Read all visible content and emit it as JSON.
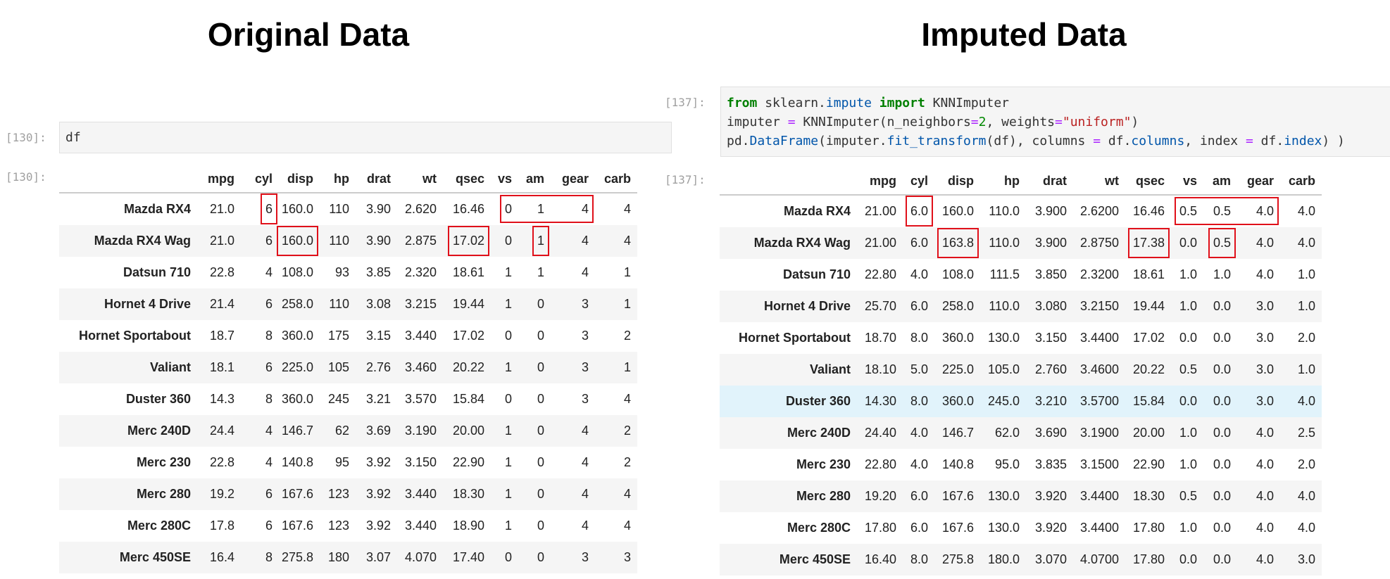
{
  "titles": {
    "left": "Original Data",
    "right": "Imputed Data"
  },
  "left": {
    "in_prompt": "[130]:",
    "out_prompt": "[130]:",
    "code": [
      [
        [
          "df",
          ""
        ]
      ]
    ],
    "columns": [
      "mpg",
      "cyl",
      "disp",
      "hp",
      "drat",
      "wt",
      "qsec",
      "vs",
      "am",
      "gear",
      "carb"
    ],
    "rows": [
      [
        "Mazda RX4",
        "21.0",
        "6",
        "160.0",
        "110",
        "3.90",
        "2.620",
        "16.46",
        "0",
        "1",
        "4",
        "4"
      ],
      [
        "Mazda RX4 Wag",
        "21.0",
        "6",
        "160.0",
        "110",
        "3.90",
        "2.875",
        "17.02",
        "0",
        "1",
        "4",
        "4"
      ],
      [
        "Datsun 710",
        "22.8",
        "4",
        "108.0",
        "93",
        "3.85",
        "2.320",
        "18.61",
        "1",
        "1",
        "4",
        "1"
      ],
      [
        "Hornet 4 Drive",
        "21.4",
        "6",
        "258.0",
        "110",
        "3.08",
        "3.215",
        "19.44",
        "1",
        "0",
        "3",
        "1"
      ],
      [
        "Hornet Sportabout",
        "18.7",
        "8",
        "360.0",
        "175",
        "3.15",
        "3.440",
        "17.02",
        "0",
        "0",
        "3",
        "2"
      ],
      [
        "Valiant",
        "18.1",
        "6",
        "225.0",
        "105",
        "2.76",
        "3.460",
        "20.22",
        "1",
        "0",
        "3",
        "1"
      ],
      [
        "Duster 360",
        "14.3",
        "8",
        "360.0",
        "245",
        "3.21",
        "3.570",
        "15.84",
        "0",
        "0",
        "3",
        "4"
      ],
      [
        "Merc 240D",
        "24.4",
        "4",
        "146.7",
        "62",
        "3.69",
        "3.190",
        "20.00",
        "1",
        "0",
        "4",
        "2"
      ],
      [
        "Merc 230",
        "22.8",
        "4",
        "140.8",
        "95",
        "3.92",
        "3.150",
        "22.90",
        "1",
        "0",
        "4",
        "2"
      ],
      [
        "Merc 280",
        "19.2",
        "6",
        "167.6",
        "123",
        "3.92",
        "3.440",
        "18.30",
        "1",
        "0",
        "4",
        "4"
      ],
      [
        "Merc 280C",
        "17.8",
        "6",
        "167.6",
        "123",
        "3.92",
        "3.440",
        "18.90",
        "1",
        "0",
        "4",
        "4"
      ],
      [
        "Merc 450SE",
        "16.4",
        "8",
        "275.8",
        "180",
        "3.07",
        "4.070",
        "17.40",
        "0",
        "0",
        "3",
        "3"
      ]
    ],
    "highlights": [
      {
        "row": 0,
        "cols": [
          "cyl"
        ]
      },
      {
        "row": 0,
        "cols": [
          "vs",
          "am",
          "gear"
        ]
      },
      {
        "row": 1,
        "cols": [
          "disp"
        ]
      },
      {
        "row": 1,
        "cols": [
          "qsec"
        ]
      },
      {
        "row": 1,
        "cols": [
          "am"
        ]
      }
    ],
    "hovered_row": null
  },
  "right": {
    "in_prompt": "[137]:",
    "out_prompt": "[137]:",
    "code": [
      [
        [
          "from",
          "kw"
        ],
        [
          " sklearn.",
          ""
        ],
        [
          "impute",
          "nm"
        ],
        [
          " ",
          ""
        ],
        [
          "import",
          "kw"
        ],
        [
          " KNNImputer",
          ""
        ]
      ],
      [
        [
          "imputer ",
          ""
        ],
        [
          "=",
          "op"
        ],
        [
          " KNNImputer(n_neighbors",
          ""
        ],
        [
          "=",
          "op"
        ],
        [
          "2",
          "num"
        ],
        [
          ", weights",
          ""
        ],
        [
          "=",
          "op"
        ],
        [
          "\"uniform\"",
          "str"
        ],
        [
          ")",
          ""
        ]
      ],
      [
        [
          "pd.",
          ""
        ],
        [
          "DataFrame",
          "nm"
        ],
        [
          "(imputer.",
          ""
        ],
        [
          "fit_transform",
          "nm"
        ],
        [
          "(df), columns ",
          ""
        ],
        [
          "=",
          "op"
        ],
        [
          " df.",
          ""
        ],
        [
          "columns",
          "nm"
        ],
        [
          ", index ",
          ""
        ],
        [
          "=",
          "op"
        ],
        [
          " df.",
          ""
        ],
        [
          "index",
          "nm"
        ],
        [
          ") )",
          ""
        ]
      ]
    ],
    "columns": [
      "mpg",
      "cyl",
      "disp",
      "hp",
      "drat",
      "wt",
      "qsec",
      "vs",
      "am",
      "gear",
      "carb"
    ],
    "rows": [
      [
        "Mazda RX4",
        "21.00",
        "6.0",
        "160.0",
        "110.0",
        "3.900",
        "2.6200",
        "16.46",
        "0.5",
        "0.5",
        "4.0",
        "4.0"
      ],
      [
        "Mazda RX4 Wag",
        "21.00",
        "6.0",
        "163.8",
        "110.0",
        "3.900",
        "2.8750",
        "17.38",
        "0.0",
        "0.5",
        "4.0",
        "4.0"
      ],
      [
        "Datsun 710",
        "22.80",
        "4.0",
        "108.0",
        "111.5",
        "3.850",
        "2.3200",
        "18.61",
        "1.0",
        "1.0",
        "4.0",
        "1.0"
      ],
      [
        "Hornet 4 Drive",
        "25.70",
        "6.0",
        "258.0",
        "110.0",
        "3.080",
        "3.2150",
        "19.44",
        "1.0",
        "0.0",
        "3.0",
        "1.0"
      ],
      [
        "Hornet Sportabout",
        "18.70",
        "8.0",
        "360.0",
        "130.0",
        "3.150",
        "3.4400",
        "17.02",
        "0.0",
        "0.0",
        "3.0",
        "2.0"
      ],
      [
        "Valiant",
        "18.10",
        "5.0",
        "225.0",
        "105.0",
        "2.760",
        "3.4600",
        "20.22",
        "0.5",
        "0.0",
        "3.0",
        "1.0"
      ],
      [
        "Duster 360",
        "14.30",
        "8.0",
        "360.0",
        "245.0",
        "3.210",
        "3.5700",
        "15.84",
        "0.0",
        "0.0",
        "3.0",
        "4.0"
      ],
      [
        "Merc 240D",
        "24.40",
        "4.0",
        "146.7",
        "62.0",
        "3.690",
        "3.1900",
        "20.00",
        "1.0",
        "0.0",
        "4.0",
        "2.5"
      ],
      [
        "Merc 230",
        "22.80",
        "4.0",
        "140.8",
        "95.0",
        "3.835",
        "3.1500",
        "22.90",
        "1.0",
        "0.0",
        "4.0",
        "2.0"
      ],
      [
        "Merc 280",
        "19.20",
        "6.0",
        "167.6",
        "130.0",
        "3.920",
        "3.4400",
        "18.30",
        "0.5",
        "0.0",
        "4.0",
        "4.0"
      ],
      [
        "Merc 280C",
        "17.80",
        "6.0",
        "167.6",
        "130.0",
        "3.920",
        "3.4400",
        "17.80",
        "1.0",
        "0.0",
        "4.0",
        "4.0"
      ],
      [
        "Merc 450SE",
        "16.40",
        "8.0",
        "275.8",
        "180.0",
        "3.070",
        "4.0700",
        "17.80",
        "0.0",
        "0.0",
        "4.0",
        "3.0"
      ]
    ],
    "highlights": [
      {
        "row": 0,
        "cols": [
          "cyl"
        ]
      },
      {
        "row": 0,
        "cols": [
          "vs",
          "am",
          "gear"
        ]
      },
      {
        "row": 1,
        "cols": [
          "disp"
        ]
      },
      {
        "row": 1,
        "cols": [
          "qsec"
        ]
      },
      {
        "row": 1,
        "cols": [
          "am"
        ]
      }
    ],
    "hovered_row": 6
  },
  "colors": {
    "highlight_box": "#e0101a",
    "hover_row": "#e1f3fb",
    "stripe": "#f5f5f5"
  }
}
